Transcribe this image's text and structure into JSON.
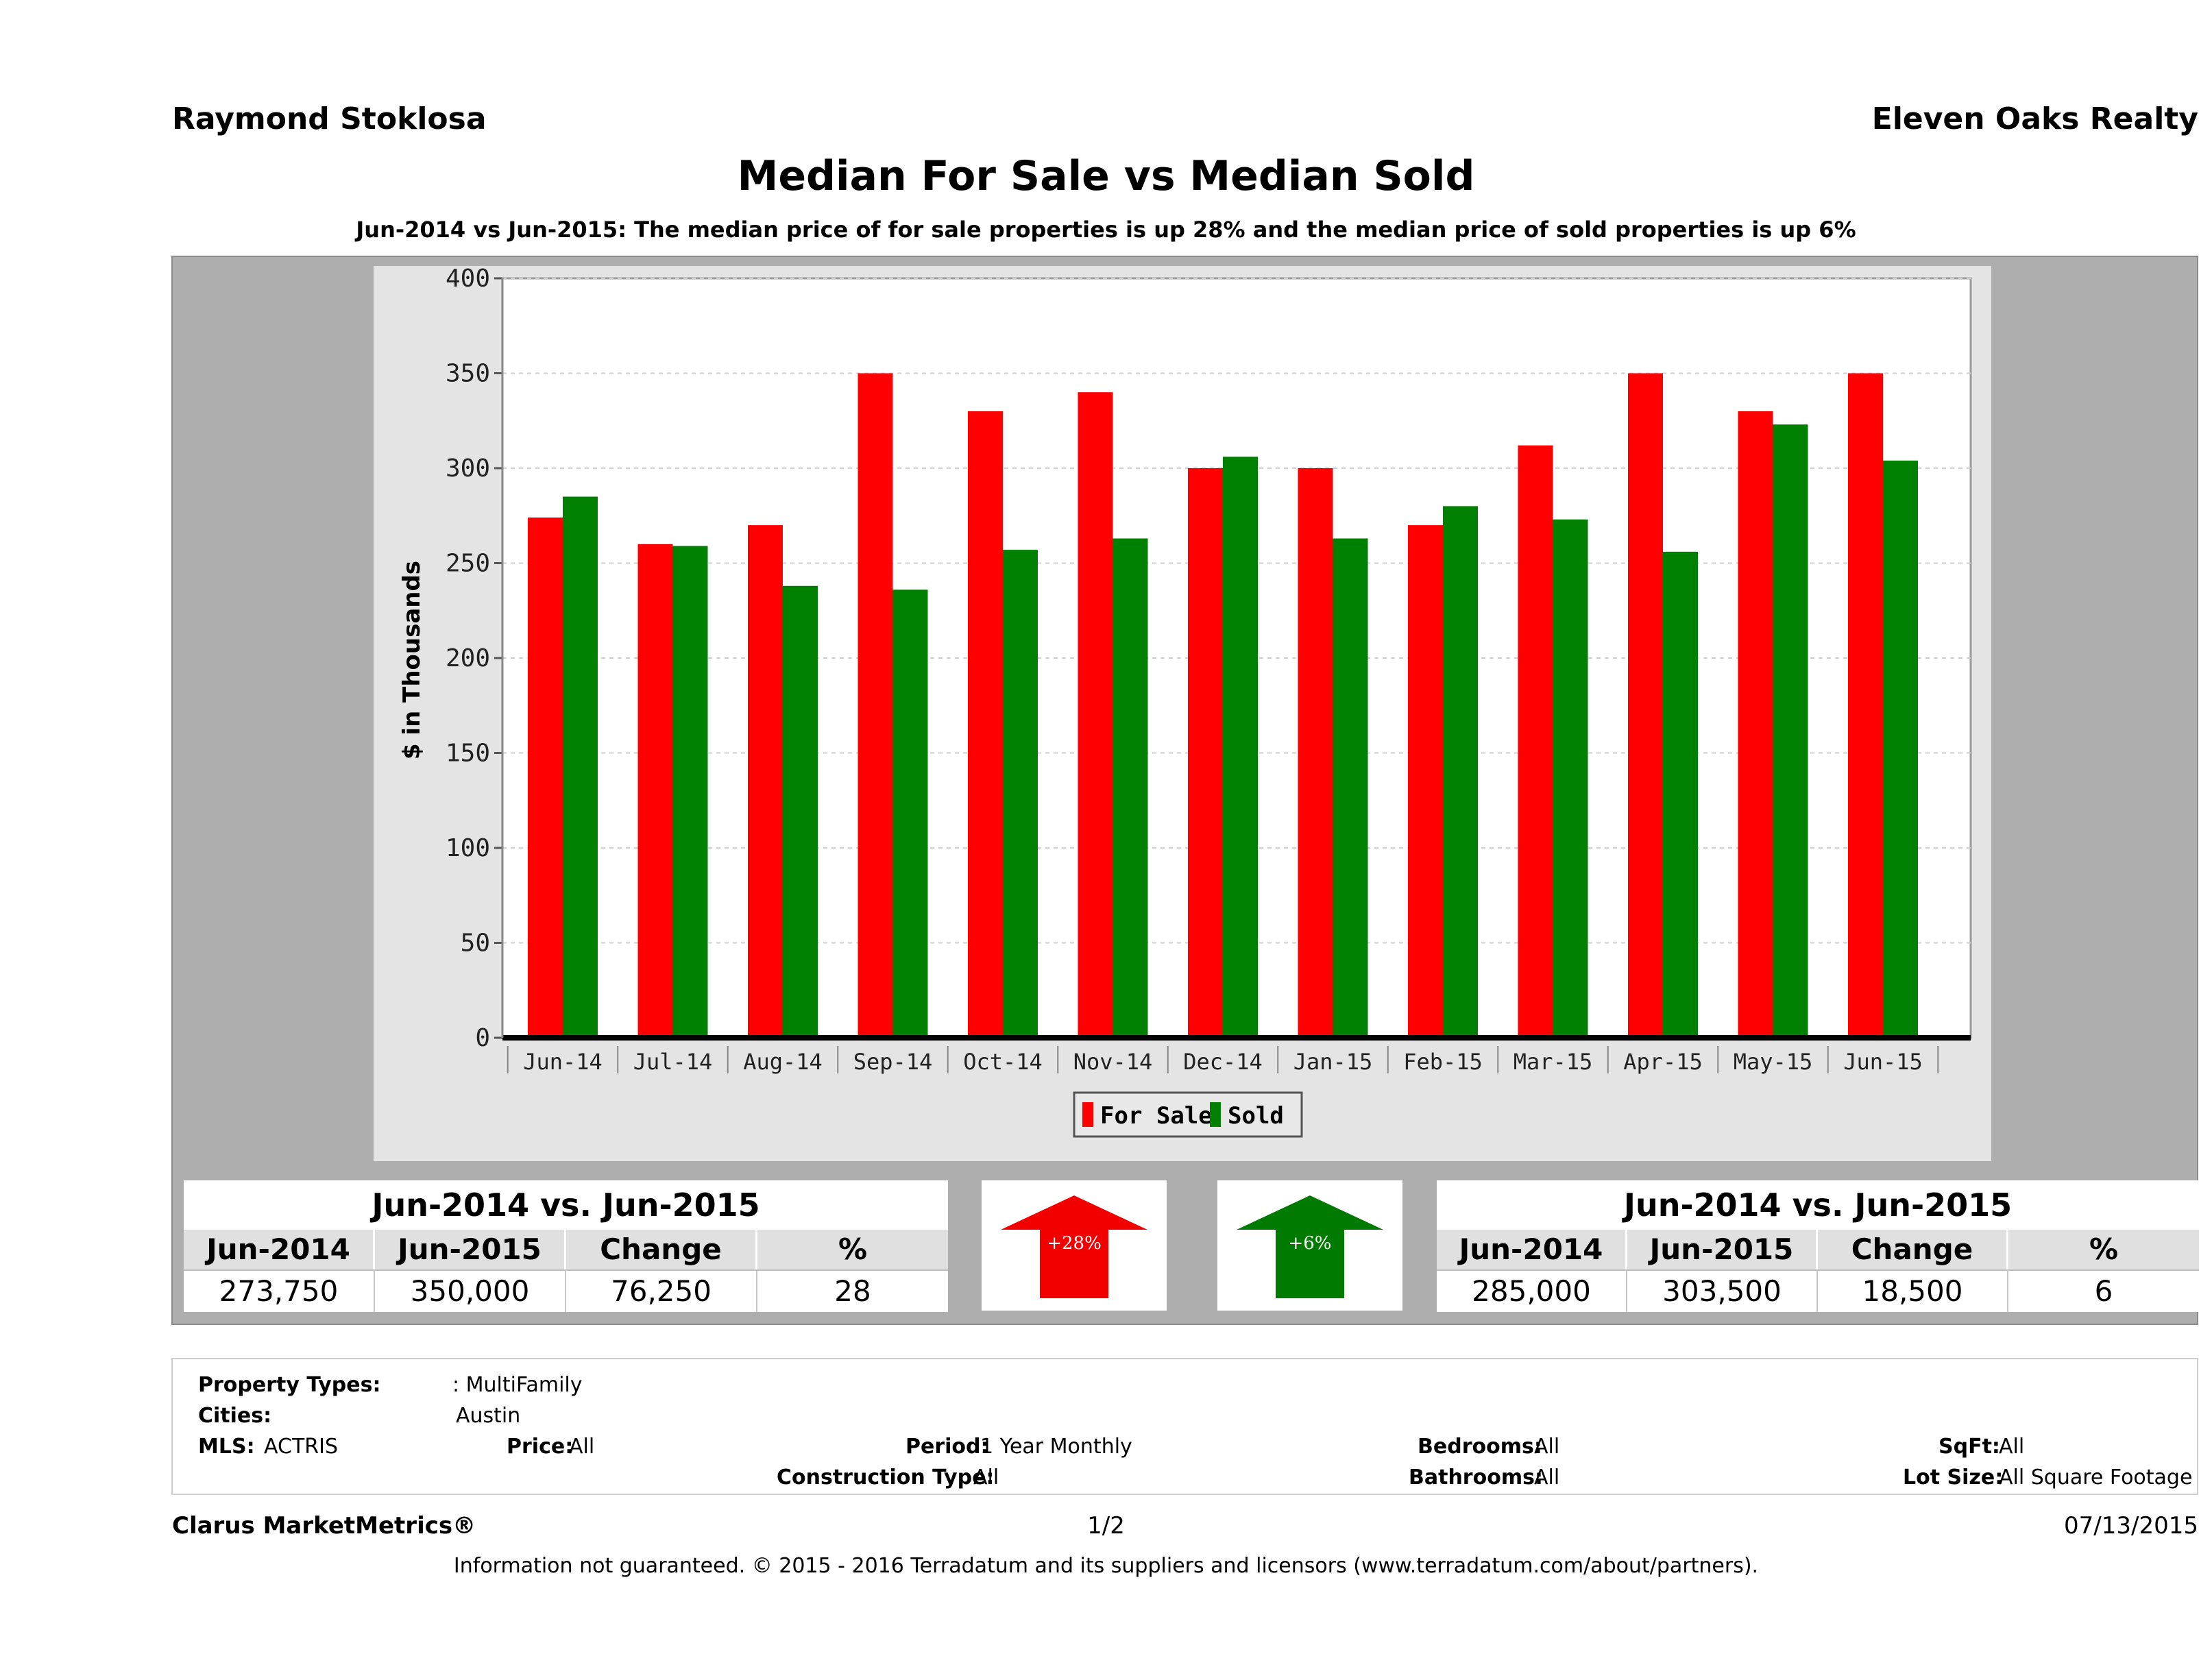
{
  "header": {
    "agent_name": "Raymond Stoklosa",
    "company": "Eleven Oaks Realty",
    "title": "Median For Sale vs Median Sold",
    "subtitle": "Jun-2014 vs Jun-2015: The median price of for sale properties is up 28% and the median price of sold properties is up 6%"
  },
  "chart_data": {
    "type": "bar",
    "title": "Median For Sale vs Median Sold",
    "ylabel": "$ in Thousands",
    "xlabel": "",
    "ylim": [
      0,
      400
    ],
    "yticks": [
      0,
      50,
      100,
      150,
      200,
      250,
      300,
      350,
      400
    ],
    "grid": true,
    "legend": "bottom-center",
    "categories": [
      "Jun-14",
      "Jul-14",
      "Aug-14",
      "Sep-14",
      "Oct-14",
      "Nov-14",
      "Dec-14",
      "Jan-15",
      "Feb-15",
      "Mar-15",
      "Apr-15",
      "May-15",
      "Jun-15"
    ],
    "series": [
      {
        "name": "For Sale",
        "color": "#ff0000",
        "values": [
          274,
          260,
          270,
          350,
          330,
          340,
          300,
          300,
          270,
          312,
          350,
          330,
          350
        ]
      },
      {
        "name": "Sold",
        "color": "#008000",
        "values": [
          285,
          259,
          238,
          236,
          257,
          263,
          306,
          263,
          280,
          273,
          256,
          323,
          304
        ]
      }
    ]
  },
  "summary_for_sale": {
    "title": "Jun-2014 vs. Jun-2015",
    "headers": [
      "Jun-2014",
      "Jun-2015",
      "Change",
      "%"
    ],
    "values": [
      "273,750",
      "350,000",
      "76,250",
      "28"
    ],
    "arrow_label": "+28%",
    "arrow_color": "#f20000"
  },
  "summary_sold": {
    "title": "Jun-2014 vs. Jun-2015",
    "headers": [
      "Jun-2014",
      "Jun-2015",
      "Change",
      "%"
    ],
    "values": [
      "285,000",
      "303,500",
      "18,500",
      "6"
    ],
    "arrow_label": "+6%",
    "arrow_color": "#007a00"
  },
  "filters": {
    "property_types_label": "Property Types:",
    "property_types_value": ": MultiFamily",
    "cities_label": "Cities:",
    "cities_value": "Austin",
    "mls_label": "MLS:",
    "mls_value": "ACTRIS",
    "price_label": "Price:",
    "price_value": "All",
    "period_label": "Period:",
    "period_value": "1 Year Monthly",
    "bedrooms_label": "Bedrooms:",
    "bedrooms_value": "All",
    "sqft_label": "SqFt:",
    "sqft_value": "All",
    "construction_label": "Construction Type:",
    "construction_value": "All",
    "bathrooms_label": "Bathrooms:",
    "bathrooms_value": "All",
    "lotsize_label": "Lot Size:",
    "lotsize_value": "All Square Footage"
  },
  "footer": {
    "brand": "Clarus MarketMetrics®",
    "page": "1/2",
    "date": "07/13/2015",
    "disclaimer": "Information not guaranteed. © 2015 - 2016 Terradatum and its suppliers and licensors (www.terradatum.com/about/partners)."
  }
}
